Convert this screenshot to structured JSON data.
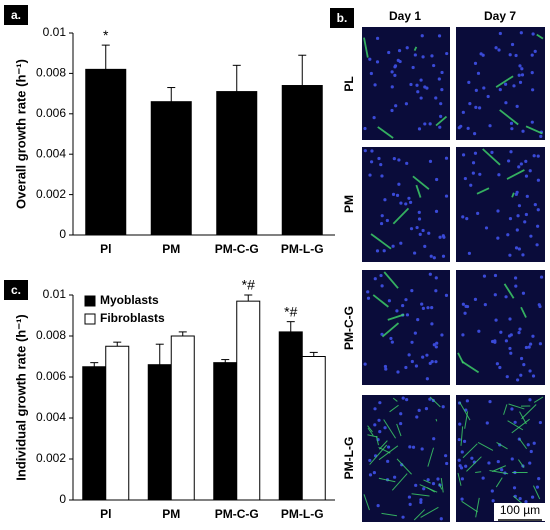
{
  "chart_data": [
    {
      "type": "bar",
      "panel_label": "a.",
      "y_label": "Overall growth rate (h⁻¹)",
      "categories": [
        "Pl",
        "PM",
        "PM-C-G",
        "PM-L-G"
      ],
      "values": [
        0.0082,
        0.0066,
        0.0071,
        0.0074
      ],
      "errors": [
        0.0012,
        0.0007,
        0.0013,
        0.0015
      ],
      "annotations": [
        "*",
        null,
        null,
        null
      ],
      "color": "#000000",
      "ylim": [
        0,
        0.01
      ],
      "yticks": [
        0,
        0.002,
        0.004,
        0.006,
        0.008,
        0.01
      ],
      "grid": false
    },
    {
      "type": "bar",
      "panel_label": "c.",
      "y_label": "Individual  growth rate (h⁻¹)",
      "categories": [
        "Pl",
        "PM",
        "PM-C-G",
        "PM-L-G"
      ],
      "series": [
        {
          "name": "Myoblasts",
          "color": "#000000",
          "values": [
            0.0065,
            0.0066,
            0.0067,
            0.0082
          ],
          "errors": [
            0.0002,
            0.001,
            0.00015,
            0.0005
          ],
          "annotations": [
            null,
            null,
            null,
            "*#"
          ]
        },
        {
          "name": "Fibroblasts",
          "color": "#ffffff",
          "values": [
            0.0075,
            0.008,
            0.0097,
            0.007
          ],
          "errors": [
            0.0002,
            0.0002,
            0.0003,
            0.0002
          ],
          "annotations": [
            null,
            null,
            "*#",
            null
          ]
        }
      ],
      "legend": "top-left",
      "ylim": [
        0,
        0.01
      ],
      "yticks": [
        0,
        0.002,
        0.004,
        0.006,
        0.008,
        0.01
      ],
      "grid": false
    }
  ],
  "panel_b": {
    "panel_label": "b.",
    "columns": [
      "Day 1",
      "Day 7"
    ],
    "rows": [
      "PL",
      "PM",
      "PM-C-G",
      "PM-L-G"
    ],
    "scale_bar": "100 µm"
  }
}
